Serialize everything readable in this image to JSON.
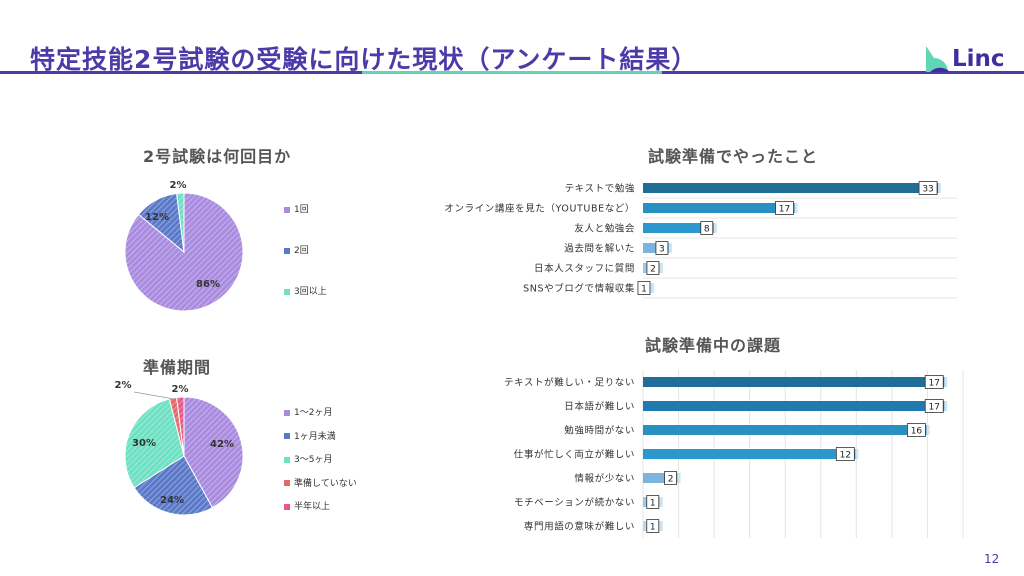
{
  "header": {
    "title": "特定技能2号試験の受験に向けた現状（アンケート結果）",
    "logo": "Linc",
    "page_number": "12"
  },
  "colors": {
    "brand": "#4b3aa8",
    "accent": "#5fd6b4"
  },
  "chart_data": [
    {
      "type": "pie",
      "title": "2号試験は何回目か",
      "legend_position": "right",
      "slices": [
        {
          "label": "1回",
          "value": 86,
          "display": "86%",
          "color": "#a98be0"
        },
        {
          "label": "2回",
          "value": 12,
          "display": "12%",
          "color": "#5b79c9"
        },
        {
          "label": "3回以上",
          "value": 2,
          "display": "2%",
          "color": "#6ee0c4"
        }
      ]
    },
    {
      "type": "pie",
      "title": "準備期間",
      "legend_position": "right",
      "slices": [
        {
          "label": "1～2ヶ月",
          "value": 42,
          "display": "42%",
          "color": "#a98be0"
        },
        {
          "label": "1ヶ月未満",
          "value": 24,
          "display": "24%",
          "color": "#5b79c9"
        },
        {
          "label": "3～5ヶ月",
          "value": 30,
          "display": "30%",
          "color": "#6ee0c4"
        },
        {
          "label": "準備していない",
          "value": 2,
          "display": "2%",
          "color": "#e06a6a"
        },
        {
          "label": "半年以上",
          "value": 2,
          "display": "2%",
          "color": "#e8578a"
        }
      ]
    },
    {
      "type": "bar",
      "orientation": "horizontal",
      "title": "試験準備でやったこと",
      "grid": true,
      "xlim": [
        0,
        35
      ],
      "categories": [
        "テキストで勉強",
        "オンライン講座を見た（YOUTUBEなど）",
        "友人と勉強会",
        "過去問を解いた",
        "日本人スタッフに質問",
        "SNSやブログで情報収集"
      ],
      "values": [
        33,
        17,
        8,
        3,
        2,
        1
      ]
    },
    {
      "type": "bar",
      "orientation": "horizontal",
      "title": "試験準備中の課題",
      "grid": true,
      "xlim": [
        0,
        18
      ],
      "categories": [
        "テキストが難しい・足りない",
        "日本語が難しい",
        "勉強時間がない",
        "仕事が忙しく両立が難しい",
        "情報が少ない",
        "モチベーションが続かない",
        "専門用語の意味が難しい"
      ],
      "values": [
        17,
        17,
        16,
        12,
        2,
        1,
        1
      ]
    }
  ]
}
